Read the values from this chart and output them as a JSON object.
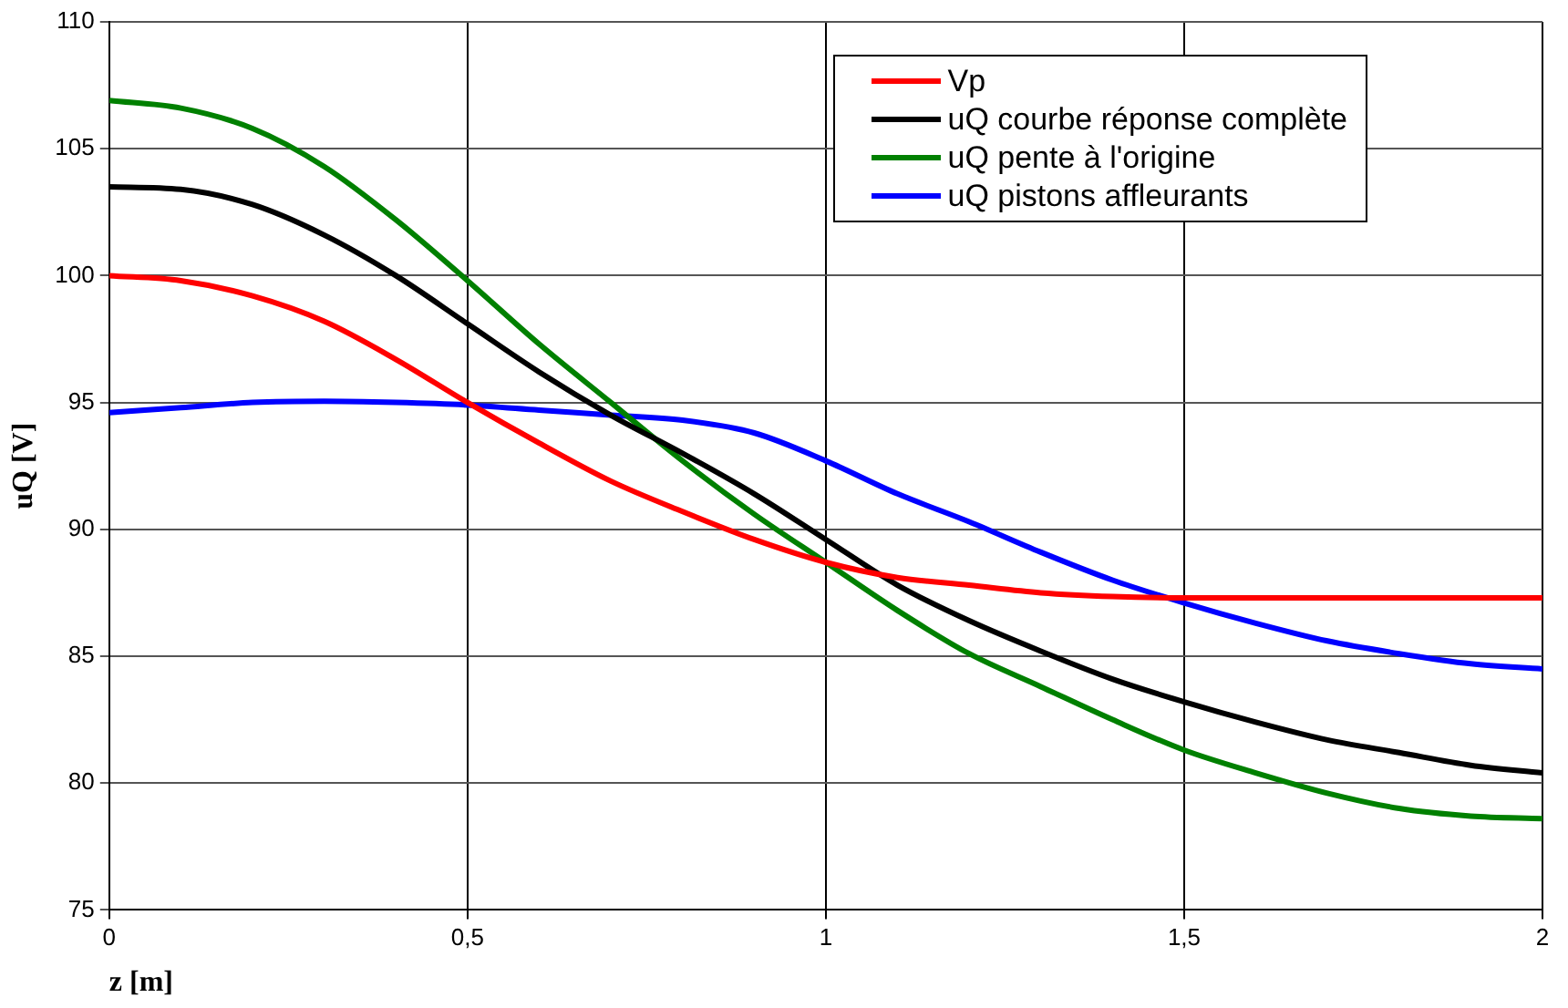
{
  "chart_data": {
    "type": "line",
    "xlabel": "z [m]",
    "ylabel": "uQ [V]",
    "x": [
      0,
      0.1,
      0.2,
      0.3,
      0.4,
      0.5,
      0.6,
      0.7,
      0.8,
      0.9,
      1,
      1.1,
      1.2,
      1.3,
      1.4,
      1.5,
      1.6,
      1.7,
      1.8,
      1.9,
      2
    ],
    "series": [
      {
        "name": "Vp",
        "color": "#ff0000",
        "values": [
          100,
          99.8,
          99.2,
          98.2,
          96.7,
          95,
          93.4,
          91.9,
          90.7,
          89.6,
          88.7,
          88.1,
          87.8,
          87.5,
          87.35,
          87.3,
          87.3,
          87.3,
          87.3,
          87.3,
          87.3
        ]
      },
      {
        "name": "uQ courbe réponse complète",
        "color": "#000000",
        "values": [
          103.5,
          103.4,
          102.8,
          101.6,
          100,
          98.1,
          96.2,
          94.5,
          93,
          91.4,
          89.6,
          87.8,
          86.4,
          85.2,
          84.1,
          83.2,
          82.4,
          81.7,
          81.2,
          80.7,
          80.4
        ]
      },
      {
        "name": "uQ pente à l'origine",
        "color": "#008000",
        "values": [
          106.9,
          106.6,
          105.8,
          104.3,
          102.2,
          99.8,
          97.3,
          95,
          92.7,
          90.6,
          88.7,
          86.8,
          85.1,
          83.8,
          82.5,
          81.3,
          80.4,
          79.6,
          79,
          78.7,
          78.6
        ]
      },
      {
        "name": "uQ pistons affleurants",
        "color": "#0000ff",
        "values": [
          94.6,
          94.8,
          95,
          95.05,
          95,
          94.9,
          94.7,
          94.5,
          94.3,
          93.8,
          92.7,
          91.4,
          90.3,
          89.1,
          88,
          87.1,
          86.3,
          85.6,
          85.1,
          84.7,
          84.5
        ]
      }
    ],
    "xlim": [
      0,
      2
    ],
    "xticks": [
      0,
      {
        "value": 0.5,
        "label": "0,5"
      },
      1,
      {
        "value": 1.5,
        "label": "1,5"
      },
      2
    ],
    "ylim": [
      75,
      110
    ],
    "yticks": [
      75,
      80,
      85,
      90,
      95,
      100,
      105,
      110
    ],
    "grid": true,
    "legend": "top right",
    "marker": "none",
    "line_style": "solid"
  }
}
